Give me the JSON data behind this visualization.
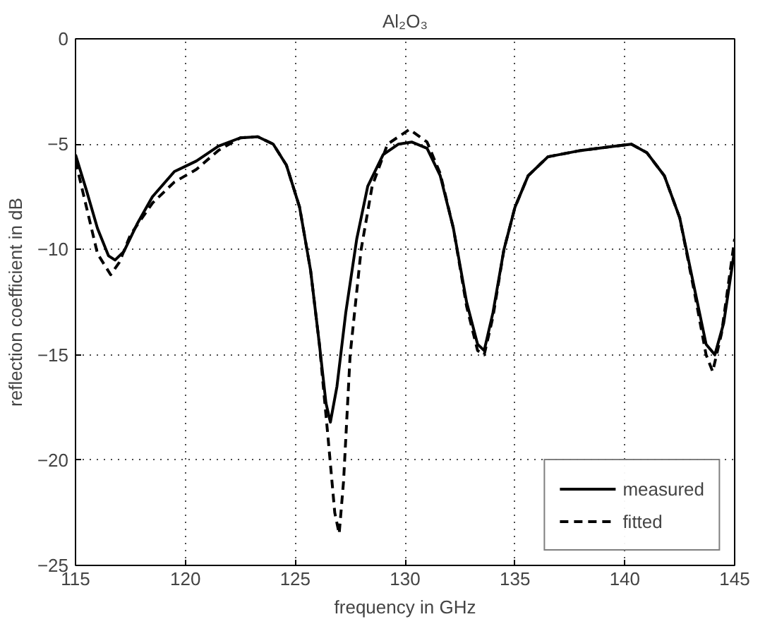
{
  "chart_data": {
    "type": "line",
    "title": "Al₂O₃",
    "xlabel": "frequency in GHz",
    "ylabel": "reflection coefficient in dB",
    "xlim": [
      115,
      145
    ],
    "ylim": [
      -25,
      0
    ],
    "xticks": [
      115,
      120,
      125,
      130,
      135,
      140,
      145
    ],
    "yticks": [
      -25,
      -20,
      -15,
      -10,
      -5,
      0
    ],
    "grid": true,
    "legend": "bottom right",
    "series": [
      {
        "name": "measured",
        "color": "#000000",
        "line_style": "solid",
        "x": [
          115,
          115.5,
          116,
          116.5,
          116.8,
          117.2,
          117.8,
          118.5,
          119.5,
          120.5,
          121.5,
          122.5,
          123.3,
          124,
          124.6,
          125.2,
          125.7,
          126.1,
          126.4,
          126.6,
          126.9,
          127.3,
          127.8,
          128.3,
          129,
          129.7,
          130.3,
          131,
          131.6,
          132.2,
          132.8,
          133.3,
          133.6,
          134,
          134.5,
          135,
          135.6,
          136.5,
          138,
          139.5,
          140.3,
          141,
          141.8,
          142.5,
          143.2,
          143.7,
          144.1,
          144.5,
          145
        ],
        "values": [
          -5.5,
          -7.2,
          -9,
          -10.3,
          -10.5,
          -10.1,
          -8.8,
          -7.5,
          -6.3,
          -5.8,
          -5.1,
          -4.7,
          -4.65,
          -5,
          -6,
          -8,
          -11,
          -14.5,
          -17.3,
          -18.2,
          -16.5,
          -13,
          -9.5,
          -7,
          -5.5,
          -5,
          -4.9,
          -5.2,
          -6.5,
          -9,
          -12.5,
          -14.5,
          -14.8,
          -13,
          -10,
          -8,
          -6.5,
          -5.6,
          -5.3,
          -5.1,
          -5,
          -5.4,
          -6.5,
          -8.5,
          -12,
          -14.5,
          -15,
          -13.5,
          -10
        ]
      },
      {
        "name": "fitted",
        "color": "#000000",
        "line_style": "dashed",
        "x": [
          115,
          115.5,
          116,
          116.6,
          117,
          117.5,
          118.5,
          119.5,
          120.5,
          121.5,
          122.5,
          123.3,
          124,
          124.6,
          125.2,
          125.7,
          126.1,
          126.5,
          126.8,
          127,
          127.2,
          127.5,
          128,
          128.5,
          129.2,
          130.2,
          131,
          131.6,
          132.2,
          132.8,
          133.3,
          133.6,
          134,
          134.5,
          135,
          135.6,
          136.5,
          138,
          139.5,
          140.3,
          141,
          141.8,
          142.5,
          143.2,
          143.7,
          144,
          144.4,
          145
        ],
        "values": [
          -5.8,
          -8,
          -10.2,
          -11.2,
          -10.6,
          -9.3,
          -7.8,
          -6.8,
          -6.2,
          -5.3,
          -4.7,
          -4.65,
          -5,
          -6,
          -8,
          -11,
          -14.5,
          -19,
          -22.5,
          -23.5,
          -21,
          -15,
          -10,
          -7,
          -5,
          -4.3,
          -4.9,
          -6.4,
          -9,
          -12.7,
          -14.8,
          -15,
          -13.2,
          -10,
          -8,
          -6.5,
          -5.6,
          -5.3,
          -5.1,
          -5,
          -5.4,
          -6.5,
          -8.5,
          -12.2,
          -15,
          -15.8,
          -14,
          -9.5
        ]
      }
    ]
  }
}
